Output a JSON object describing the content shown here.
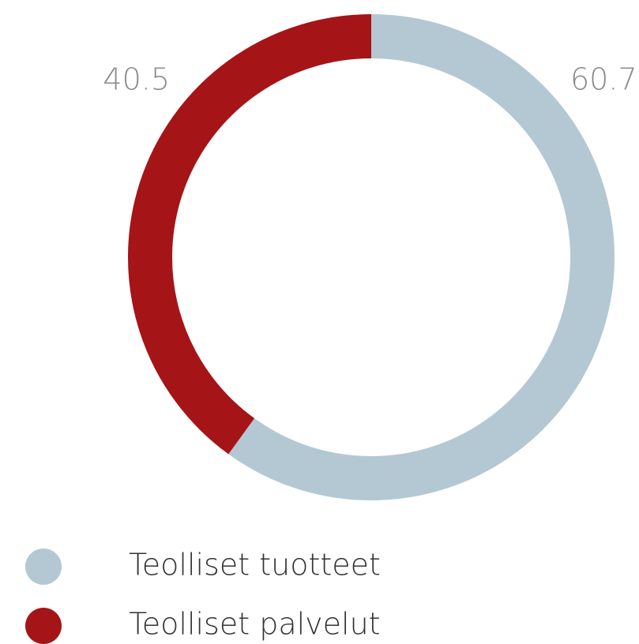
{
  "chart_data": {
    "type": "pie",
    "donut": true,
    "categories": [
      "Teolliset tuotteet",
      "Teolliset palvelut"
    ],
    "values": [
      60.7,
      40.5
    ],
    "colors": [
      "#b3c8d3",
      "#a51417"
    ]
  }
}
